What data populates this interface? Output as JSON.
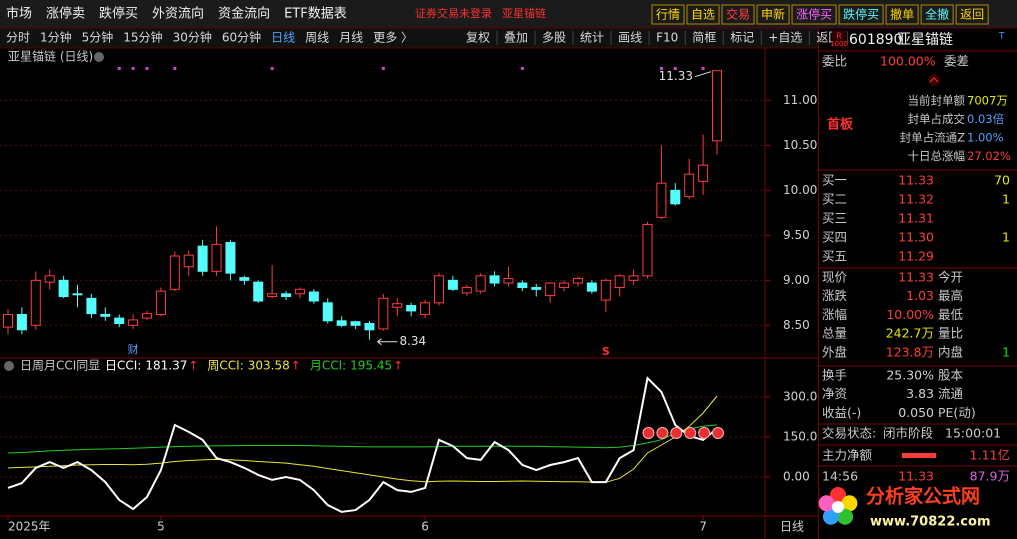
{
  "ui": {
    "menu": [
      "市场",
      "涨停卖",
      "跌停买",
      "外资流向",
      "资金流向",
      "ETF数据表"
    ],
    "notice": [
      "证券交易未登录",
      "亚星锚链"
    ],
    "buttons": [
      "行情",
      "自选",
      "交易",
      "申新",
      "涨停买",
      "跌停买",
      "撤单",
      "全撤",
      "返回"
    ],
    "periods": [
      "分时",
      "1分钟",
      "5分钟",
      "15分钟",
      "30分钟",
      "60分钟",
      "日线",
      "周线",
      "月线",
      "更多 〉"
    ],
    "tools": [
      "复权",
      "叠加",
      "多股",
      "统计",
      "画线",
      "F10",
      "简框",
      "标记",
      "+自选",
      "返回"
    ],
    "events": [
      "财",
      "S"
    ],
    "period_label": "日线",
    "quote": {
      "badge": "R",
      "badge_num": "1000",
      "code": "601890",
      "name": "亚星锚链",
      "tag": "T",
      "weibi_label": "委比",
      "weibi": "100.00%",
      "weicha_label": "委差",
      "board": "首板",
      "seal": [
        {
          "label": "当前封单额",
          "value": "7007万"
        },
        {
          "label": "封单占成交",
          "value": "0.03倍"
        },
        {
          "label": "封单占流通Z",
          "value": "1.00%"
        },
        {
          "label": "十日总涨幅",
          "value": "27.02%"
        }
      ],
      "bids": [
        {
          "label": "买一",
          "price": "11.33",
          "vol": "70"
        },
        {
          "label": "买二",
          "price": "11.32",
          "vol": "1"
        },
        {
          "label": "买三",
          "price": "11.31"
        },
        {
          "label": "买四",
          "price": "11.30",
          "vol": "1"
        },
        {
          "label": "买五",
          "price": "11.29"
        }
      ],
      "stats": [
        {
          "label": "现价",
          "value": "11.33",
          "label2": "今开"
        },
        {
          "label": "涨跌",
          "value": "1.03",
          "label2": "最高"
        },
        {
          "label": "涨幅",
          "value": "10.00%",
          "label2": "最低"
        },
        {
          "label": "总量",
          "value": "242.7万",
          "label2": "量比"
        },
        {
          "label": "外盘",
          "value": "123.8万",
          "label2": "内盘",
          "value2": "1"
        }
      ],
      "stats2": [
        {
          "label": "换手",
          "value": "25.30%",
          "label2": "股本"
        },
        {
          "label": "净资",
          "value": "3.83",
          "label2": "流通"
        },
        {
          "label": "收益(-)",
          "value": "0.050",
          "label2": "PE(动)"
        }
      ],
      "state_label": "交易状态:",
      "state": "闭市阶段",
      "state_time": "15:00:01",
      "main_label": "主力净额",
      "main_value": "1.11亿",
      "tick_time": "14:56",
      "tick_price": "11.33",
      "tick_vol": "87.9万"
    },
    "logo": {
      "name": "分析家公式网",
      "url": "www.70822.com"
    }
  },
  "chart_data": [
    {
      "type": "candlestick",
      "title": "亚星锚链 (日线)",
      "categories": [
        "2025年",
        null,
        null,
        null,
        null,
        null,
        null,
        null,
        null,
        null,
        null,
        "5",
        null,
        null,
        null,
        null,
        null,
        null,
        null,
        null,
        null,
        null,
        null,
        null,
        null,
        null,
        null,
        null,
        null,
        null,
        "6",
        null,
        null,
        null,
        null,
        null,
        null,
        null,
        null,
        null,
        null,
        null,
        null,
        null,
        null,
        null,
        null,
        null,
        null,
        null,
        "7",
        null
      ],
      "open": [
        8.48,
        8.62,
        8.5,
        8.98,
        9.0,
        8.85,
        8.8,
        8.62,
        8.58,
        8.5,
        8.58,
        8.62,
        8.9,
        9.15,
        9.38,
        9.1,
        9.42,
        9.03,
        8.98,
        8.82,
        8.85,
        8.85,
        8.87,
        8.75,
        8.55,
        8.54,
        8.52,
        8.46,
        8.7,
        8.72,
        8.62,
        8.75,
        9.0,
        8.86,
        8.88,
        9.05,
        8.97,
        8.97,
        8.92,
        8.83,
        8.92,
        8.97,
        8.97,
        8.78,
        8.92,
        9.0,
        9.05,
        9.7,
        10.0,
        9.93,
        10.1,
        10.55
      ],
      "high": [
        8.68,
        8.7,
        9.1,
        9.12,
        9.05,
        8.95,
        8.85,
        8.7,
        8.62,
        8.62,
        8.66,
        8.92,
        9.32,
        9.33,
        9.45,
        9.6,
        9.45,
        9.05,
        9.0,
        9.17,
        8.88,
        8.92,
        8.9,
        8.8,
        8.6,
        8.55,
        8.55,
        8.85,
        8.8,
        8.75,
        8.78,
        9.08,
        9.05,
        8.95,
        9.08,
        9.1,
        9.15,
        9.0,
        8.96,
        8.98,
        9.0,
        9.04,
        9.0,
        9.02,
        9.07,
        9.12,
        9.65,
        10.5,
        10.08,
        10.35,
        10.62,
        11.33
      ],
      "low": [
        8.4,
        8.4,
        8.45,
        8.9,
        8.8,
        8.7,
        8.58,
        8.55,
        8.48,
        8.46,
        8.56,
        8.6,
        8.88,
        9.05,
        9.05,
        9.05,
        9.0,
        8.95,
        8.75,
        8.8,
        8.78,
        8.8,
        8.74,
        8.52,
        8.48,
        8.46,
        8.34,
        8.44,
        8.6,
        8.6,
        8.58,
        8.72,
        8.88,
        8.83,
        8.85,
        8.93,
        8.93,
        8.88,
        8.82,
        8.75,
        8.88,
        8.93,
        8.85,
        8.65,
        8.82,
        8.95,
        9.02,
        9.68,
        9.83,
        9.9,
        9.95,
        10.4
      ],
      "close": [
        8.62,
        8.45,
        9.0,
        9.05,
        8.82,
        8.84,
        8.63,
        8.6,
        8.52,
        8.56,
        8.63,
        8.88,
        9.27,
        9.28,
        9.1,
        9.4,
        9.08,
        9.0,
        8.77,
        8.85,
        8.82,
        8.9,
        8.77,
        8.55,
        8.5,
        8.5,
        8.45,
        8.8,
        8.74,
        8.66,
        8.75,
        9.05,
        8.9,
        8.92,
        9.05,
        8.97,
        9.02,
        8.92,
        8.9,
        8.97,
        8.97,
        9.02,
        8.88,
        9.0,
        9.05,
        9.05,
        9.62,
        10.08,
        9.85,
        10.18,
        10.28,
        11.33
      ],
      "up_color": "#ff3c3c",
      "down_color": "#54fcfc",
      "ylim": [
        8.17,
        11.56
      ],
      "yticks": [
        {
          "value": 11,
          "label": "11.00"
        },
        {
          "value": 10.5,
          "label": "10.50"
        },
        {
          "value": 10,
          "label": "10.00"
        },
        {
          "value": 9.5,
          "label": "9.50"
        },
        {
          "value": 9,
          "label": "9.00"
        },
        {
          "value": 8.5,
          "label": "8.50"
        }
      ],
      "grid": true,
      "max_label": 11.33,
      "min_label": 8.34
    },
    {
      "type": "line",
      "title": "日周月CCI同显",
      "trend_arrow": "↑",
      "series": [
        {
          "name": "日CCI:",
          "color": "#ffffff",
          "values": [
            -41,
            -23,
            34,
            56,
            34,
            56,
            26,
            -19,
            -86,
            -120,
            -75,
            26,
            195,
            169,
            139,
            71,
            56,
            34,
            8,
            -11,
            0,
            -11,
            -49,
            -105,
            -131,
            -124,
            -86,
            -19,
            -49,
            -56,
            -41,
            139,
            116,
            71,
            64,
            131,
            101,
            45,
            26,
            45,
            56,
            71,
            -19,
            -19,
            71,
            101,
            371,
            319,
            195,
            154,
            139,
            181.37
          ]
        },
        {
          "name": "周CCI:",
          "color": "#e8e832",
          "values": [
            34,
            36,
            38,
            40,
            42,
            45,
            46,
            47,
            47,
            46,
            48,
            52,
            58,
            62,
            64,
            66,
            65,
            62,
            58,
            55,
            52,
            46,
            40,
            32,
            24,
            16,
            8,
            0,
            -8,
            -14,
            -18,
            -16,
            -15,
            -16,
            -17,
            -17,
            -16,
            -15,
            -16,
            -17,
            -18,
            -18,
            -19,
            -20,
            -5,
            30,
            90,
            120,
            150,
            190,
            240,
            303.58
          ]
        },
        {
          "name": "月CCI:",
          "color": "#22cc22",
          "values": [
            90,
            92,
            95,
            98,
            100,
            102,
            104,
            105,
            106,
            108,
            110,
            112,
            114,
            115,
            116,
            117,
            117,
            118,
            118,
            118,
            118,
            118,
            117,
            116,
            115,
            114,
            113,
            113,
            113,
            113,
            113,
            114,
            115,
            115,
            115,
            115,
            115,
            115,
            115,
            114,
            113,
            112,
            111,
            110,
            112,
            118,
            128,
            140,
            165,
            180,
            190,
            195.45
          ]
        }
      ],
      "ylim": [
        -138.75,
        378.75
      ],
      "yticks": [
        {
          "value": 300,
          "label": "300.0"
        },
        {
          "value": 150,
          "label": "150.0"
        },
        {
          "value": 0,
          "label": "0.00"
        }
      ],
      "grid": true
    }
  ]
}
